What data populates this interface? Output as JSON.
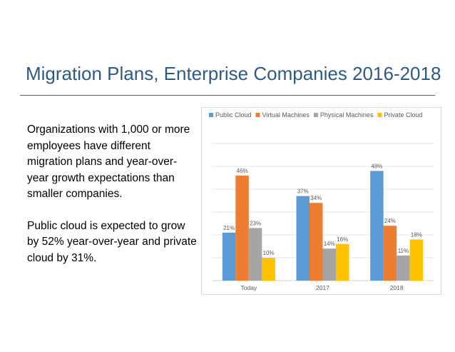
{
  "slide": {
    "title": "Migration Plans, Enterprise Companies 2016-2018",
    "paragraphs": [
      "Organizations with 1,000 or more employees have different migration plans and year-over-year growth expectations than smaller companies.",
      "Public cloud is expected to grow by 52% year-over-year and private cloud by 31%."
    ]
  },
  "chart_data": {
    "type": "bar",
    "categories": [
      "Today",
      "2017",
      "2018"
    ],
    "series": [
      {
        "name": "Public Cloud",
        "values": [
          21,
          37,
          48
        ],
        "labels": [
          "21%",
          "37%",
          "48%"
        ],
        "color": "#5b9bd5"
      },
      {
        "name": "Virtual Machines",
        "values": [
          46,
          34,
          24
        ],
        "labels": [
          "46%",
          "34%",
          "24%"
        ],
        "color": "#ed7d31"
      },
      {
        "name": "Physical Machines",
        "values": [
          23,
          14,
          11
        ],
        "labels": [
          "23%",
          "14%",
          "11%"
        ],
        "color": "#a5a5a5"
      },
      {
        "name": "Private Cloud",
        "values": [
          10,
          16,
          18
        ],
        "labels": [
          "10%",
          "16%",
          "18%"
        ],
        "color": "#ffc000"
      }
    ],
    "ylim": [
      0,
      60
    ],
    "grid": true,
    "legend": "top"
  }
}
